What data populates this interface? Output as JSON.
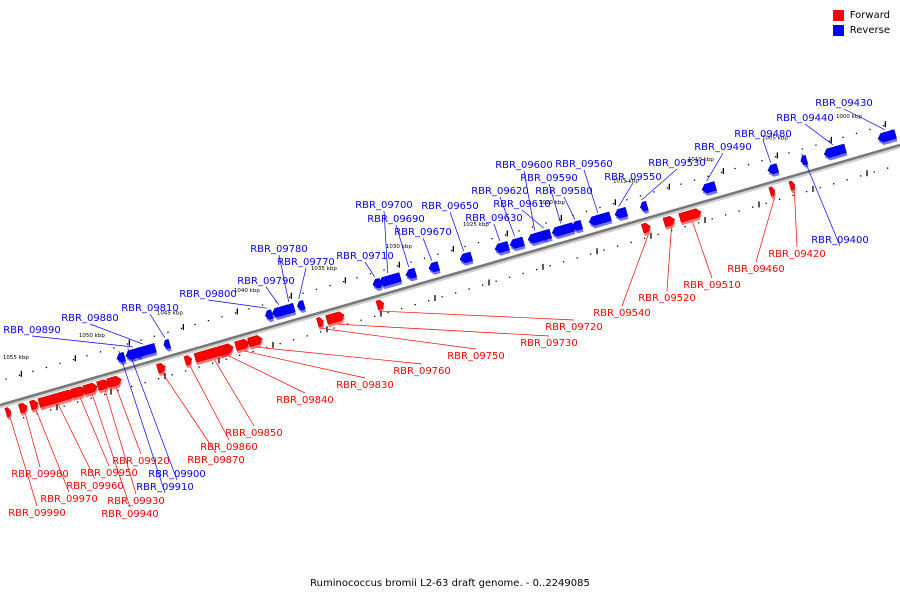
{
  "legend": {
    "forward": {
      "label": "Forward",
      "color": "#ff0000"
    },
    "reverse": {
      "label": "Reverse",
      "color": "#0000ff"
    }
  },
  "colors": {
    "forward": "#ff0000",
    "reverse": "#0000ff",
    "backbone": "#777777"
  },
  "caption": "Ruminococcus bromii L2-63 draft genome. - 0..2249085",
  "ticks": [
    "1000 kbp",
    "1005 kbp",
    "1010 kbp",
    "1015 kbp",
    "1020 kbp",
    "1025 kbp",
    "1030 kbp",
    "1035 kbp",
    "1040 kbp",
    "1045 kbp",
    "1050 kbp",
    "1055 kbp"
  ],
  "genes": [
    {
      "label": "RBR_09400",
      "strand": "reverse"
    },
    {
      "label": "RBR_09420",
      "strand": "forward"
    },
    {
      "label": "RBR_09430",
      "strand": "reverse"
    },
    {
      "label": "RBR_09440",
      "strand": "reverse"
    },
    {
      "label": "RBR_09460",
      "strand": "forward"
    },
    {
      "label": "RBR_09480",
      "strand": "reverse"
    },
    {
      "label": "RBR_09490",
      "strand": "reverse"
    },
    {
      "label": "RBR_09510",
      "strand": "forward"
    },
    {
      "label": "RBR_09520",
      "strand": "forward"
    },
    {
      "label": "RBR_09530",
      "strand": "reverse"
    },
    {
      "label": "RBR_09540",
      "strand": "forward"
    },
    {
      "label": "RBR_09550",
      "strand": "reverse"
    },
    {
      "label": "RBR_09560",
      "strand": "reverse"
    },
    {
      "label": "RBR_09580",
      "strand": "reverse"
    },
    {
      "label": "RBR_09590",
      "strand": "reverse"
    },
    {
      "label": "RBR_09600",
      "strand": "reverse"
    },
    {
      "label": "RBR_09610",
      "strand": "reverse"
    },
    {
      "label": "RBR_09620",
      "strand": "reverse"
    },
    {
      "label": "RBR_09630",
      "strand": "reverse"
    },
    {
      "label": "RBR_09650",
      "strand": "reverse"
    },
    {
      "label": "RBR_09670",
      "strand": "reverse"
    },
    {
      "label": "RBR_09690",
      "strand": "reverse"
    },
    {
      "label": "RBR_09700",
      "strand": "reverse"
    },
    {
      "label": "RBR_09710",
      "strand": "reverse"
    },
    {
      "label": "RBR_09720",
      "strand": "forward"
    },
    {
      "label": "RBR_09730",
      "strand": "forward"
    },
    {
      "label": "RBR_09750",
      "strand": "forward"
    },
    {
      "label": "RBR_09760",
      "strand": "forward"
    },
    {
      "label": "RBR_09770",
      "strand": "reverse"
    },
    {
      "label": "RBR_09780",
      "strand": "reverse"
    },
    {
      "label": "RBR_09790",
      "strand": "reverse"
    },
    {
      "label": "RBR_09800",
      "strand": "reverse"
    },
    {
      "label": "RBR_09810",
      "strand": "reverse"
    },
    {
      "label": "RBR_09830",
      "strand": "forward"
    },
    {
      "label": "RBR_09840",
      "strand": "forward"
    },
    {
      "label": "RBR_09850",
      "strand": "forward"
    },
    {
      "label": "RBR_09860",
      "strand": "forward"
    },
    {
      "label": "RBR_09870",
      "strand": "forward"
    },
    {
      "label": "RBR_09880",
      "strand": "reverse"
    },
    {
      "label": "RBR_09890",
      "strand": "reverse"
    },
    {
      "label": "RBR_09900",
      "strand": "reverse"
    },
    {
      "label": "RBR_09910",
      "strand": "reverse"
    },
    {
      "label": "RBR_09920",
      "strand": "forward"
    },
    {
      "label": "RBR_09930",
      "strand": "forward"
    },
    {
      "label": "RBR_09940",
      "strand": "forward"
    },
    {
      "label": "RBR_09950",
      "strand": "forward"
    },
    {
      "label": "RBR_09960",
      "strand": "forward"
    },
    {
      "label": "RBR_09970",
      "strand": "forward"
    },
    {
      "label": "RBR_09980",
      "strand": "forward"
    },
    {
      "label": "RBR_09990",
      "strand": "forward"
    }
  ]
}
